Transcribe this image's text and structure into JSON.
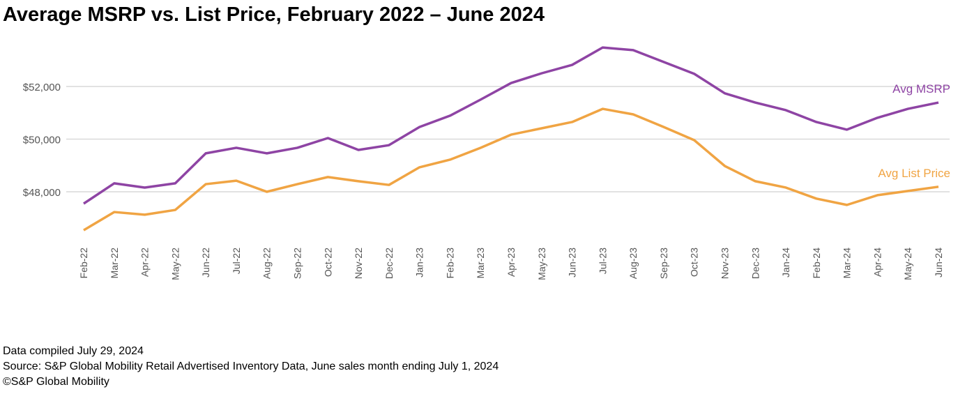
{
  "chart_data": {
    "type": "line",
    "title": "Average MSRP vs. List Price, February 2022 – June 2024",
    "categories": [
      "Feb-22",
      "Mar-22",
      "Apr-22",
      "May-22",
      "Jun-22",
      "Jul-22",
      "Aug-22",
      "Sep-22",
      "Oct-22",
      "Nov-22",
      "Dec-22",
      "Jan-23",
      "Feb-23",
      "Mar-23",
      "Apr-23",
      "May-23",
      "Jun-23",
      "Jul-23",
      "Aug-23",
      "Sep-23",
      "Oct-23",
      "Nov-23",
      "Dec-23",
      "Jan-24",
      "Feb-24",
      "Mar-24",
      "Apr-24",
      "May-24",
      "Jun-24"
    ],
    "series": [
      {
        "name": "Avg MSRP",
        "color": "#8e44a4",
        "values": [
          47550,
          48320,
          48160,
          48320,
          49460,
          49670,
          49460,
          49670,
          50040,
          49590,
          49770,
          50460,
          50890,
          51500,
          52130,
          52500,
          52820,
          53480,
          53380,
          52930,
          52480,
          51740,
          51390,
          51100,
          50650,
          50360,
          50810,
          51150,
          51390
        ]
      },
      {
        "name": "Avg List Price",
        "color": "#f0a443",
        "values": [
          46540,
          47230,
          47130,
          47310,
          48290,
          48420,
          48000,
          48290,
          48560,
          48400,
          48260,
          48930,
          49220,
          49670,
          50170,
          50410,
          50650,
          51150,
          50940,
          50460,
          49960,
          48980,
          48400,
          48160,
          47740,
          47500,
          47870,
          48030,
          48190
        ]
      }
    ],
    "ylim": [
      46000,
      54000
    ],
    "yticks": [
      {
        "value": 48000,
        "label": "$48,000"
      },
      {
        "value": 50000,
        "label": "$50,000"
      },
      {
        "value": 52000,
        "label": "$52,000"
      }
    ],
    "grid": true,
    "notes": [
      "Data compiled July 29, 2024",
      "Source: S&P Global Mobility Retail Advertised Inventory Data, June sales month ending July 1, 2024",
      "©S&P Global Mobility"
    ]
  }
}
